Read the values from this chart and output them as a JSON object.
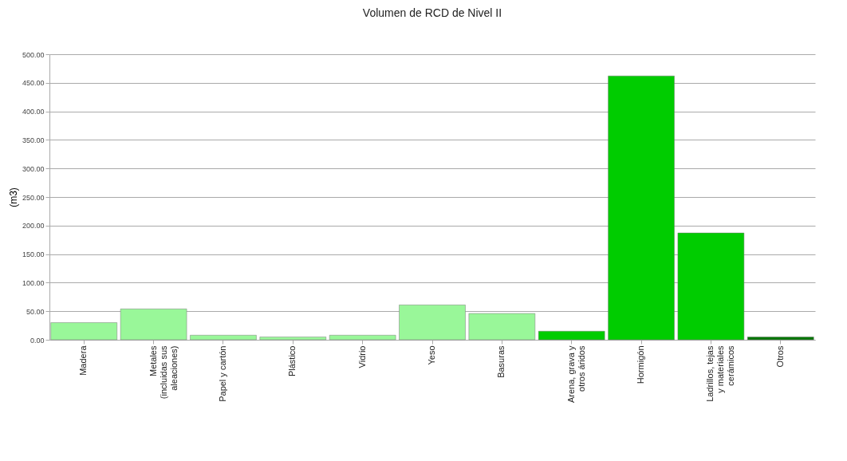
{
  "chart_data": {
    "type": "bar",
    "title": "Volumen de RCD de Nivel II",
    "ylabel": "(m3)",
    "categories": [
      "Madera",
      "Metales (incluidas sus aleaciones)",
      "Papel y cartón",
      "Plástico",
      "Vidrio",
      "Yeso",
      "Basuras",
      "Arena, grava y otros áridos",
      "Hormigón",
      "Ladrillos, tejas y materiales cerámicos",
      "Otros"
    ],
    "values": [
      30,
      54,
      8,
      5,
      8,
      61,
      46,
      15,
      462,
      187,
      5
    ],
    "colors": [
      "#99f799",
      "#99f799",
      "#99f799",
      "#99f799",
      "#99f799",
      "#99f799",
      "#99f799",
      "#00cc00",
      "#00cc00",
      "#00cc00",
      "#007700"
    ],
    "ylim": [
      0,
      500
    ],
    "yticks": [
      {
        "value": 0,
        "label": "0.00"
      },
      {
        "value": 50,
        "label": "50.00"
      },
      {
        "value": 100,
        "label": "100.00"
      },
      {
        "value": 150,
        "label": "150.00"
      },
      {
        "value": 200,
        "label": "200.00"
      },
      {
        "value": 250,
        "label": "250.00"
      },
      {
        "value": 300,
        "label": "300.00"
      },
      {
        "value": 350,
        "label": "350.00"
      },
      {
        "value": 400,
        "label": "400.00"
      },
      {
        "value": 450,
        "label": "450.00"
      },
      {
        "value": 500,
        "label": "500.00"
      }
    ],
    "grid": "y"
  }
}
